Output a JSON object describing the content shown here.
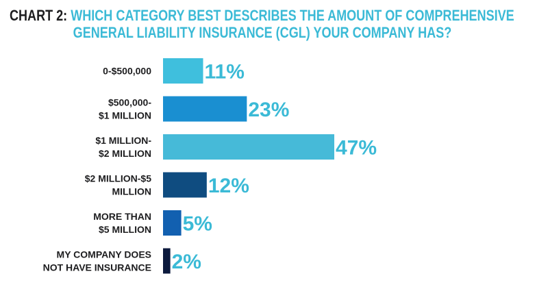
{
  "chart_data": {
    "type": "bar",
    "orientation": "horizontal",
    "title_lead": "CHART 2:",
    "title_line1": "WHICH CATEGORY BEST DESCRIBES THE AMOUNT OF COMPREHENSIVE",
    "title_line2": "GENERAL LIABILITY INSURANCE (CGL) YOUR COMPANY HAS?",
    "categories": [
      [
        "0-$500,000"
      ],
      [
        "$500,000-",
        "$1 MILLION"
      ],
      [
        "$1 MILLION-",
        "$2 MILLION"
      ],
      [
        "$2 MILLION-$5",
        "MILLION"
      ],
      [
        "MORE THAN",
        "$5 MILLION"
      ],
      [
        "MY COMPANY DOES",
        "NOT HAVE INSURANCE"
      ]
    ],
    "values": [
      11,
      23,
      47,
      12,
      5,
      2
    ],
    "value_labels": [
      "11%",
      "23%",
      "47%",
      "12%",
      "5%",
      "2%"
    ],
    "bar_colors": [
      "#3fbfdd",
      "#1a8fd1",
      "#46bad8",
      "#0f4c80",
      "#1260b0",
      "#0c1a3d"
    ],
    "value_label_color": "#3bbad6",
    "xlim": [
      0,
      47
    ],
    "grid": false,
    "legend": "none"
  }
}
